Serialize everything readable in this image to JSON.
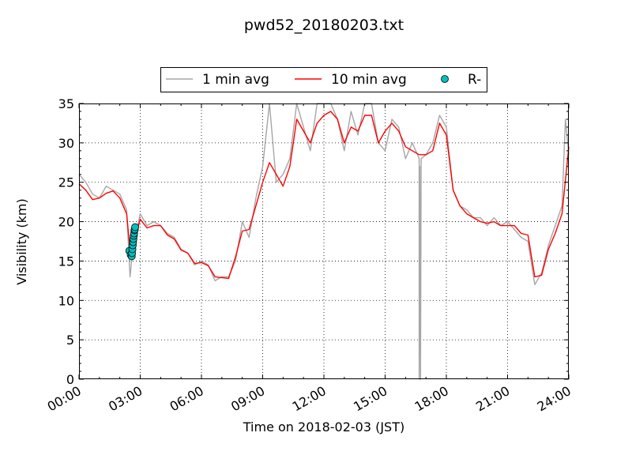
{
  "chart_data": {
    "type": "line",
    "title": "pwd52_20180203.txt",
    "xlabel": "Time on 2018-02-03 (JST)",
    "ylabel": "Visibility (km)",
    "xlim": [
      "00:00",
      "24:00"
    ],
    "ylim": [
      0,
      35
    ],
    "x_tick_labels": [
      "00:00",
      "03:00",
      "06:00",
      "09:00",
      "12:00",
      "15:00",
      "18:00",
      "21:00",
      "24:00"
    ],
    "y_tick_labels": [
      "0",
      "5",
      "10",
      "15",
      "20",
      "25",
      "30",
      "35"
    ],
    "grid": true,
    "legend": {
      "placement": "top-center, above plot",
      "entries": [
        "1 min avg",
        "10 min avg",
        "R-"
      ]
    },
    "series": [
      {
        "name": "10 min avg",
        "color": "#ff0000",
        "time": [
          "00:00",
          "00:20",
          "00:40",
          "01:00",
          "01:20",
          "01:40",
          "02:00",
          "02:20",
          "02:30",
          "02:40",
          "02:50",
          "03:00",
          "03:20",
          "03:40",
          "04:00",
          "04:20",
          "04:40",
          "05:00",
          "05:20",
          "05:40",
          "06:00",
          "06:20",
          "06:40",
          "07:00",
          "07:20",
          "07:40",
          "08:00",
          "08:20",
          "08:40",
          "09:00",
          "09:20",
          "09:40",
          "10:00",
          "10:20",
          "10:40",
          "11:00",
          "11:20",
          "11:40",
          "12:00",
          "12:20",
          "12:40",
          "13:00",
          "13:20",
          "13:40",
          "14:00",
          "14:20",
          "14:40",
          "15:00",
          "15:20",
          "15:40",
          "16:00",
          "16:20",
          "16:40",
          "17:00",
          "17:20",
          "17:40",
          "18:00",
          "18:20",
          "18:40",
          "19:00",
          "19:20",
          "19:40",
          "20:00",
          "20:20",
          "20:40",
          "21:00",
          "21:20",
          "21:40",
          "22:00",
          "22:20",
          "22:40",
          "23:00",
          "23:20",
          "23:40",
          "24:00"
        ],
        "values": [
          24.8,
          24.0,
          22.8,
          23.0,
          23.6,
          23.9,
          23.0,
          21.0,
          16.4,
          16.8,
          18.7,
          20.3,
          19.2,
          19.5,
          19.5,
          18.3,
          17.8,
          16.4,
          16.0,
          14.7,
          14.8,
          14.4,
          13.0,
          12.9,
          12.8,
          15.5,
          18.8,
          19.0,
          22.0,
          25.0,
          27.5,
          26.0,
          24.5,
          27.0,
          33.0,
          31.5,
          30.0,
          32.5,
          33.5,
          34.0,
          33.0,
          30.0,
          32.0,
          31.5,
          33.5,
          33.5,
          30.0,
          31.5,
          32.5,
          31.5,
          29.5,
          29.0,
          28.5,
          28.5,
          29.0,
          32.5,
          31.0,
          24.0,
          22.0,
          21.0,
          20.5,
          20.0,
          19.8,
          20.0,
          19.5,
          19.5,
          19.5,
          18.5,
          18.3,
          13.0,
          13.2,
          16.5,
          18.5,
          21.0,
          29.5
        ]
      },
      {
        "name": "1 min avg",
        "color": "#a6a6a6",
        "time": [
          "00:00",
          "00:20",
          "00:40",
          "01:00",
          "01:20",
          "01:40",
          "02:00",
          "02:20",
          "02:30",
          "02:40",
          "02:50",
          "03:00",
          "03:20",
          "03:40",
          "04:00",
          "04:20",
          "04:40",
          "05:00",
          "05:20",
          "05:40",
          "06:00",
          "06:20",
          "06:40",
          "07:00",
          "07:20",
          "07:40",
          "08:00",
          "08:20",
          "08:40",
          "09:00",
          "09:20",
          "09:40",
          "10:00",
          "10:20",
          "10:40",
          "11:00",
          "11:20",
          "11:40",
          "12:00",
          "12:20",
          "12:40",
          "13:00",
          "13:20",
          "13:40",
          "14:00",
          "14:20",
          "14:40",
          "15:00",
          "15:20",
          "15:40",
          "16:00",
          "16:20",
          "16:40",
          "16:40",
          "16:42",
          "16:44",
          "16:46",
          "17:00",
          "17:20",
          "17:40",
          "18:00",
          "18:20",
          "18:40",
          "19:00",
          "19:20",
          "19:40",
          "20:00",
          "20:20",
          "20:40",
          "21:00",
          "21:20",
          "21:40",
          "22:00",
          "22:20",
          "22:40",
          "23:00",
          "23:20",
          "23:40",
          "23:50",
          "24:00"
        ],
        "values": [
          26.0,
          25.0,
          23.5,
          23.0,
          24.5,
          24.0,
          23.5,
          21.5,
          13.0,
          17.5,
          19.0,
          21.0,
          19.5,
          20.0,
          19.5,
          18.5,
          18.0,
          16.5,
          16.0,
          14.5,
          15.0,
          14.5,
          12.5,
          13.0,
          13.0,
          15.0,
          20.0,
          18.0,
          23.0,
          27.0,
          35.0,
          25.0,
          26.0,
          28.0,
          35.0,
          32.0,
          29.0,
          35.0,
          35.0,
          35.0,
          33.0,
          29.0,
          34.0,
          31.0,
          35.0,
          35.0,
          30.0,
          29.0,
          33.0,
          32.0,
          28.0,
          30.0,
          28.0,
          0.0,
          27.0,
          0.0,
          28.0,
          28.5,
          30.0,
          33.5,
          32.0,
          24.0,
          22.0,
          21.5,
          20.5,
          20.5,
          19.5,
          20.5,
          19.5,
          20.0,
          19.0,
          18.0,
          17.5,
          12.0,
          13.5,
          17.0,
          19.5,
          22.0,
          33.0,
          28.5
        ]
      },
      {
        "name": "R-",
        "color": "#00bfbf",
        "marker": "circle",
        "time": [
          "02:28",
          "02:32",
          "02:35",
          "02:36",
          "02:37",
          "02:38",
          "02:39",
          "02:40",
          "02:41",
          "02:42",
          "02:43",
          "02:44",
          "02:45"
        ],
        "values": [
          16.3,
          15.8,
          15.6,
          16.0,
          16.5,
          17.0,
          17.4,
          17.8,
          18.2,
          18.5,
          18.9,
          19.0,
          19.3
        ]
      }
    ]
  }
}
